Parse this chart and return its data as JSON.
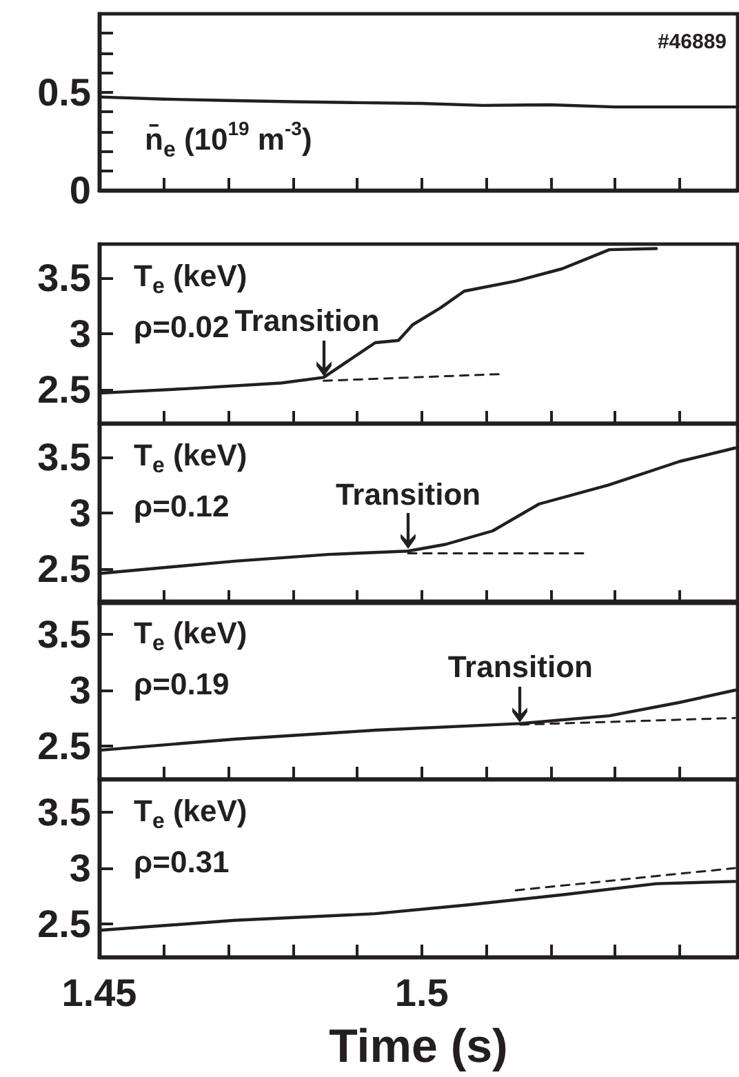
{
  "chart_data": [
    {
      "type": "line",
      "x": [
        1.45,
        1.46,
        1.47,
        1.48,
        1.49,
        1.5,
        1.5095,
        1.52,
        1.53,
        1.54,
        1.549
      ],
      "xlim": [
        1.45,
        1.549
      ],
      "xticks": [
        {
          "value": 1.45,
          "label": null
        },
        {
          "value": 1.46,
          "label": null
        },
        {
          "value": 1.47,
          "label": null
        },
        {
          "value": 1.48,
          "label": null
        },
        {
          "value": 1.49,
          "label": null
        },
        {
          "value": 1.5,
          "label": null
        },
        {
          "value": 1.51,
          "label": null
        },
        {
          "value": 1.52,
          "label": null
        },
        {
          "value": 1.53,
          "label": null
        },
        {
          "value": 1.54,
          "label": null
        }
      ],
      "ylim": [
        0,
        0.9
      ],
      "yticks": [
        0,
        {
          "value": 0.1,
          "label": null
        },
        {
          "value": 0.2,
          "label": null
        },
        {
          "value": 0.3,
          "label": null
        },
        {
          "value": 0.4,
          "label": null
        },
        0.5,
        {
          "value": 0.6,
          "label": null
        },
        {
          "value": 0.7,
          "label": null
        },
        {
          "value": 0.8,
          "label": null
        }
      ],
      "tick_labels": "y",
      "marker": "none",
      "series": [
        {
          "color": "#231f20",
          "line_style": "solid",
          "values": [
            0.476,
            0.465,
            0.458,
            0.452,
            0.447,
            0.443,
            0.433,
            0.436,
            0.425,
            0.425,
            0.425
          ]
        }
      ],
      "annotations": [
        "#46889",
        "n̄$_{e}$ (10$^{19}$ m$^{-3}$)"
      ]
    },
    {
      "type": "line",
      "x": [
        1.45,
        1.4637,
        1.4782,
        1.4848,
        1.4884,
        1.4928,
        1.4964,
        1.4986,
        1.5029,
        1.5066,
        1.5146,
        1.5218,
        1.5291,
        1.5364
      ],
      "xlim": [
        1.45,
        1.549
      ],
      "xticks": [
        {
          "value": 1.45,
          "label": null
        },
        {
          "value": 1.46,
          "label": null
        },
        {
          "value": 1.47,
          "label": null
        },
        {
          "value": 1.48,
          "label": null
        },
        {
          "value": 1.49,
          "label": null
        },
        {
          "value": 1.5,
          "label": null
        },
        {
          "value": 1.51,
          "label": null
        },
        {
          "value": 1.52,
          "label": null
        },
        {
          "value": 1.53,
          "label": null
        },
        {
          "value": 1.54,
          "label": null
        }
      ],
      "ylim": [
        2.2,
        3.8
      ],
      "yticks": [
        2.5,
        3,
        3.5
      ],
      "tick_labels": "y",
      "marker": "none",
      "series": [
        {
          "color": "#231f20",
          "line_style": "solid",
          "values": [
            2.47,
            2.51,
            2.56,
            2.61,
            2.75,
            2.92,
            2.94,
            3.08,
            3.23,
            3.38,
            3.47,
            3.58,
            3.75,
            3.76
          ]
        },
        {
          "type": "line",
          "color": "#231f20",
          "line_style": "dashed",
          "x": [
            1.4848,
            1.5124
          ],
          "values": [
            2.58,
            2.64
          ]
        }
      ],
      "annotations": [
        "T$_{e}$ (keV)",
        "ρ=0.02",
        {
          "text": "Transition",
          "x": 1.4848,
          "y": 2.61
        }
      ]
    },
    {
      "type": "line",
      "x": [
        1.45,
        1.471,
        1.4855,
        1.4979,
        1.5037,
        1.511,
        1.5182,
        1.529,
        1.54,
        1.5486
      ],
      "xlim": [
        1.45,
        1.549
      ],
      "xticks": [
        {
          "value": 1.45,
          "label": null
        },
        {
          "value": 1.46,
          "label": null
        },
        {
          "value": 1.47,
          "label": null
        },
        {
          "value": 1.48,
          "label": null
        },
        {
          "value": 1.49,
          "label": null
        },
        {
          "value": 1.5,
          "label": null
        },
        {
          "value": 1.51,
          "label": null
        },
        {
          "value": 1.52,
          "label": null
        },
        {
          "value": 1.53,
          "label": null
        },
        {
          "value": 1.54,
          "label": null
        }
      ],
      "ylim": [
        2.2,
        3.8
      ],
      "yticks": [
        2.5,
        3,
        3.5
      ],
      "tick_labels": "y",
      "marker": "none",
      "series": [
        {
          "color": "#231f20",
          "line_style": "solid",
          "values": [
            2.46,
            2.57,
            2.63,
            2.66,
            2.72,
            2.84,
            3.08,
            3.25,
            3.46,
            3.58
          ]
        },
        {
          "type": "line",
          "color": "#231f20",
          "line_style": "dashed",
          "x": [
            1.4979,
            1.5254
          ],
          "values": [
            2.64,
            2.64
          ]
        }
      ],
      "annotations": [
        "T$_{e}$ (keV)",
        "ρ=0.12",
        {
          "text": "Transition",
          "x": 1.4979,
          "y": 2.66
        }
      ]
    },
    {
      "type": "line",
      "x": [
        1.45,
        1.471,
        1.4928,
        1.5153,
        1.5291,
        1.54,
        1.5486
      ],
      "xlim": [
        1.45,
        1.549
      ],
      "xticks": [
        {
          "value": 1.45,
          "label": null
        },
        {
          "value": 1.46,
          "label": null
        },
        {
          "value": 1.47,
          "label": null
        },
        {
          "value": 1.48,
          "label": null
        },
        {
          "value": 1.49,
          "label": null
        },
        {
          "value": 1.5,
          "label": null
        },
        {
          "value": 1.51,
          "label": null
        },
        {
          "value": 1.52,
          "label": null
        },
        {
          "value": 1.53,
          "label": null
        },
        {
          "value": 1.54,
          "label": null
        }
      ],
      "ylim": [
        2.2,
        3.8
      ],
      "yticks": [
        2.5,
        3,
        3.5
      ],
      "tick_labels": "y",
      "marker": "none",
      "series": [
        {
          "color": "#231f20",
          "line_style": "solid",
          "values": [
            2.46,
            2.56,
            2.64,
            2.7,
            2.77,
            2.89,
            3.0
          ]
        },
        {
          "type": "line",
          "color": "#231f20",
          "line_style": "dashed",
          "x": [
            1.5153,
            1.5486
          ],
          "values": [
            2.69,
            2.75
          ]
        }
      ],
      "annotations": [
        "T$_{e}$ (keV)",
        "ρ=0.19",
        {
          "text": "Transition",
          "x": 1.5153,
          "y": 2.7
        }
      ]
    },
    {
      "type": "line",
      "x": [
        1.45,
        1.471,
        1.4928,
        1.5073,
        1.5218,
        1.5364,
        1.5486
      ],
      "xlim": [
        1.45,
        1.549
      ],
      "xticks": [
        1.45,
        {
          "value": 1.46,
          "label": null
        },
        {
          "value": 1.47,
          "label": null
        },
        {
          "value": 1.48,
          "label": null
        },
        {
          "value": 1.49,
          "label": null
        },
        1.5,
        {
          "value": 1.51,
          "label": null
        },
        {
          "value": 1.52,
          "label": null
        },
        {
          "value": 1.53,
          "label": null
        },
        {
          "value": 1.54,
          "label": null
        }
      ],
      "ylim": [
        2.2,
        3.8
      ],
      "yticks": [
        2.5,
        3,
        3.5
      ],
      "marker": "none",
      "xlabel": "Time (s)",
      "series": [
        {
          "color": "#231f20",
          "line_style": "solid",
          "values": [
            2.44,
            2.53,
            2.59,
            2.67,
            2.76,
            2.86,
            2.88
          ]
        },
        {
          "type": "line",
          "color": "#231f20",
          "line_style": "dashed",
          "x": [
            1.5146,
            1.5486
          ],
          "values": [
            2.8,
            3.0
          ]
        }
      ],
      "annotations": [
        "T$_{e}$ (keV)",
        "ρ=0.31"
      ]
    }
  ]
}
